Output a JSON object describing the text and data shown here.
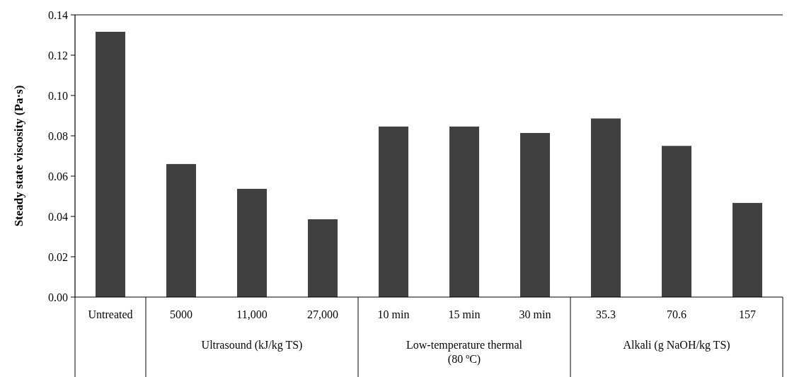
{
  "chart_data": {
    "type": "bar",
    "ylabel": "Steady state viscosity (Pa·s)",
    "categories": [
      "Untreated",
      "5000",
      "11,000",
      "27,000",
      "10 min",
      "15 min",
      "30 min",
      "35.3",
      "70.6",
      "157"
    ],
    "values": [
      0.1316,
      0.066,
      0.0537,
      0.0386,
      0.0846,
      0.0846,
      0.0814,
      0.0886,
      0.075,
      0.0467
    ],
    "color": "#404040",
    "ylim": [
      0,
      0.14
    ],
    "yticks": [
      {
        "value": 0,
        "label": "0.00"
      },
      {
        "value": 0.02,
        "label": "0.02"
      },
      {
        "value": 0.04,
        "label": "0.04"
      },
      {
        "value": 0.06,
        "label": "0.06"
      },
      {
        "value": 0.08,
        "label": "0.08"
      },
      {
        "value": 0.1,
        "label": "0.10"
      },
      {
        "value": 0.12,
        "label": "0.12"
      },
      {
        "value": 0.14,
        "label": "0.14"
      }
    ],
    "annotations": [
      "Ultrasound (kJ/kg TS)",
      "Low-temperature thermal (80 ºC)",
      "Alkali (g NaOH/kg TS)"
    ]
  }
}
